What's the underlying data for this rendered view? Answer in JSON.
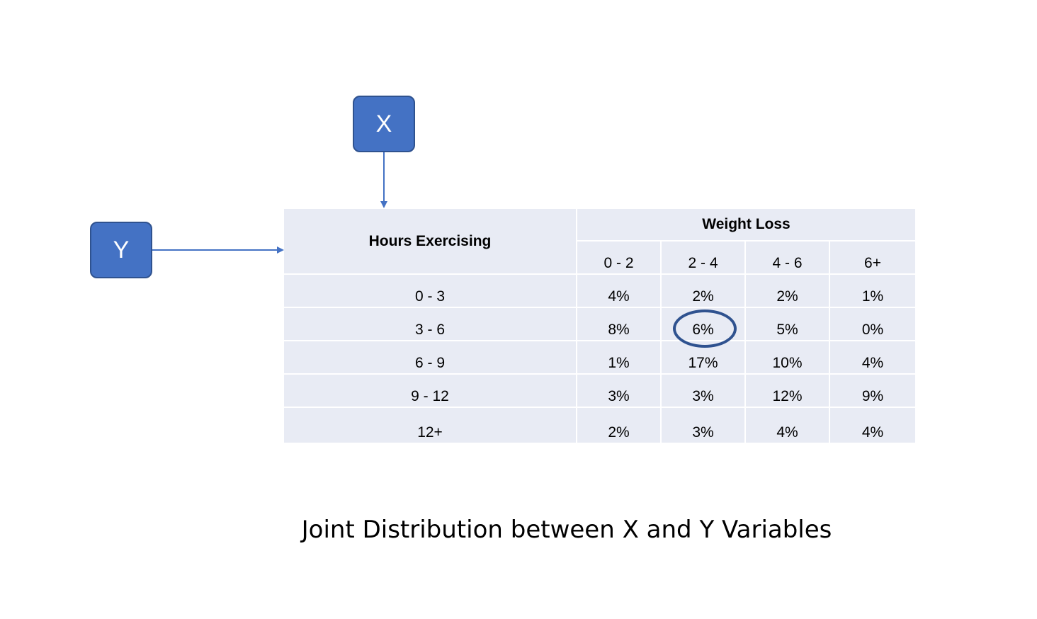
{
  "variables": {
    "x_label": "X",
    "y_label": "Y"
  },
  "table": {
    "row_header": "Hours Exercising",
    "column_group_header": "Weight Loss",
    "columns": [
      "0 - 2",
      "2 - 4",
      "4 - 6",
      "6+"
    ],
    "rows": [
      {
        "label": "0 - 3",
        "values": [
          "4%",
          "2%",
          "2%",
          "1%"
        ]
      },
      {
        "label": "3 - 6",
        "values": [
          "8%",
          "6%",
          "5%",
          "0%"
        ]
      },
      {
        "label": "6 - 9",
        "values": [
          "1%",
          "17%",
          "10%",
          "4%"
        ]
      },
      {
        "label": "9 - 12",
        "values": [
          "3%",
          "3%",
          "12%",
          "9%"
        ]
      },
      {
        "label": "12+",
        "values": [
          "2%",
          "3%",
          "4%",
          "4%"
        ]
      }
    ],
    "highlighted_cell": {
      "row": 1,
      "column": 1
    }
  },
  "caption": "Joint Distribution between X and Y Variables",
  "colors": {
    "box_fill": "#4472c4",
    "box_border": "#2f528f",
    "arrow": "#4472c4",
    "table_fill": "#e8ebf4",
    "highlight_ring": "#2f528f"
  }
}
